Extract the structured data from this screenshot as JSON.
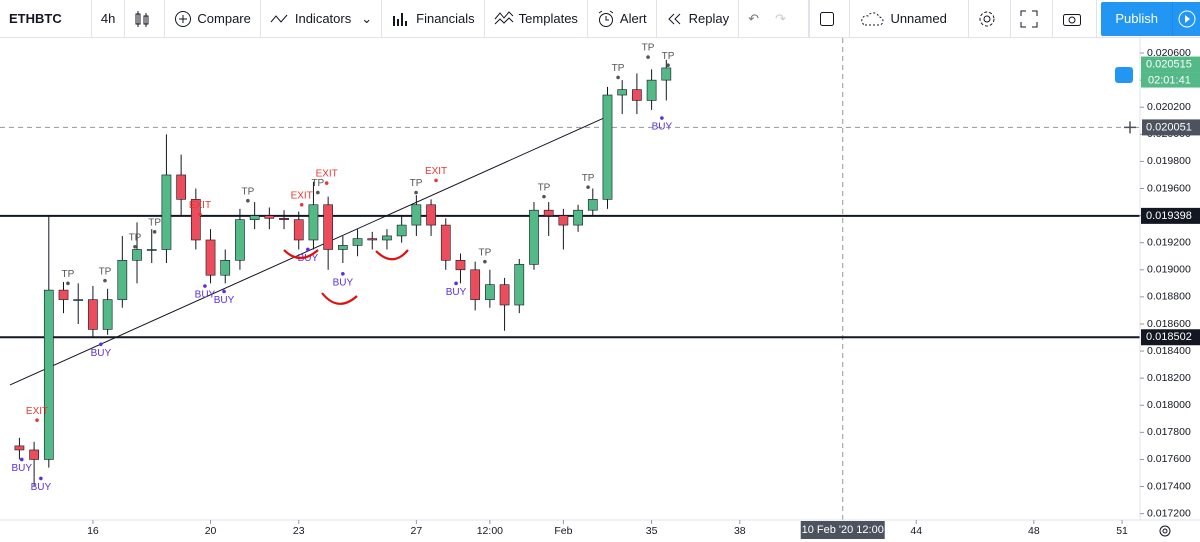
{
  "toolbar": {
    "symbol": "ETHBTC",
    "interval": "4h",
    "compare": "Compare",
    "indicators": "Indicators",
    "financials": "Financials",
    "templates": "Templates",
    "alert": "Alert",
    "replay": "Replay",
    "layout": "Unnamed",
    "publish": "Publish"
  },
  "chart_data": {
    "type": "candlestick",
    "x": [
      13.5,
      14,
      14.5,
      15,
      15.5,
      16,
      16.5,
      17,
      17.5,
      18,
      18.5,
      19,
      19.5,
      20,
      20.5,
      21,
      21.5,
      22,
      22.5,
      23,
      23.5,
      24,
      24.5,
      25,
      25.5,
      26,
      26.5,
      27,
      27.5,
      28,
      28.5,
      29,
      29.5,
      30,
      30.5,
      31,
      31.5,
      32,
      32.5,
      33,
      33.5,
      34,
      34.5,
      35,
      35.5
    ],
    "open": [
      0.0177,
      0.01767,
      0.0176,
      0.01885,
      0.01878,
      0.01878,
      0.01856,
      0.01878,
      0.01907,
      0.01915,
      0.01915,
      0.0197,
      0.01952,
      0.01922,
      0.01896,
      0.01907,
      0.01937,
      0.0194,
      0.01938,
      0.01937,
      0.01922,
      0.01948,
      0.01915,
      0.01918,
      0.01923,
      0.01922,
      0.01925,
      0.01933,
      0.01948,
      0.01933,
      0.01907,
      0.019,
      0.01878,
      0.01889,
      0.01874,
      0.01904,
      0.01944,
      0.0194,
      0.01933,
      0.01944,
      0.01952,
      0.02029,
      0.02033,
      0.02025,
      0.0204
    ],
    "high": [
      0.01776,
      0.01773,
      0.0194,
      0.01891,
      0.0189,
      0.01888,
      0.01886,
      0.01925,
      0.01935,
      0.0193,
      0.02,
      0.01985,
      0.0196,
      0.0193,
      0.01915,
      0.01945,
      0.0195,
      0.01946,
      0.01944,
      0.01943,
      0.01965,
      0.01954,
      0.01925,
      0.0193,
      0.01928,
      0.0193,
      0.0194,
      0.01955,
      0.01952,
      0.01938,
      0.01912,
      0.01906,
      0.019,
      0.01894,
      0.01908,
      0.0195,
      0.0195,
      0.01945,
      0.01948,
      0.0196,
      0.02035,
      0.0204,
      0.02045,
      0.02048,
      0.02055
    ],
    "low": [
      0.0176,
      0.0174,
      0.01754,
      0.01868,
      0.0186,
      0.0185,
      0.01852,
      0.01872,
      0.0189,
      0.01905,
      0.01905,
      0.0194,
      0.01915,
      0.0189,
      0.0189,
      0.019,
      0.0193,
      0.0193,
      0.0193,
      0.01915,
      0.01915,
      0.019,
      0.01905,
      0.0191,
      0.01915,
      0.01915,
      0.0192,
      0.01925,
      0.01925,
      0.019,
      0.0189,
      0.0187,
      0.01872,
      0.01855,
      0.01868,
      0.019,
      0.01925,
      0.01915,
      0.01928,
      0.0194,
      0.01945,
      0.02015,
      0.02015,
      0.02018,
      0.02025
    ],
    "close": [
      0.01767,
      0.0176,
      0.01885,
      0.01878,
      0.01878,
      0.01856,
      0.01878,
      0.01907,
      0.01915,
      0.01915,
      0.0197,
      0.01952,
      0.01922,
      0.01896,
      0.01907,
      0.01937,
      0.0194,
      0.01938,
      0.01937,
      0.01922,
      0.01948,
      0.01915,
      0.01918,
      0.01923,
      0.01922,
      0.01925,
      0.01933,
      0.01948,
      0.01933,
      0.01907,
      0.019,
      0.01878,
      0.01889,
      0.01874,
      0.01904,
      0.01944,
      0.0194,
      0.01933,
      0.01944,
      0.01952,
      0.02029,
      0.02033,
      0.02025,
      0.0204,
      0.02049
    ],
    "up_color": "#53b987",
    "down_color": "#eb4d5c",
    "xlim": [
      12.84,
      51.61
    ],
    "xticks": [
      16,
      20,
      23,
      27,
      {
        "value": 29.5,
        "label": "12:00"
      },
      {
        "value": 32,
        "label": "Feb"
      },
      35,
      38,
      44,
      48,
      51
    ],
    "ylim": [
      0.017153,
      0.020711
    ],
    "yticks": [
      {
        "value": 0.0172,
        "label": "0.017200"
      },
      {
        "value": 0.0174,
        "label": "0.017400"
      },
      {
        "value": 0.0176,
        "label": "0.017600"
      },
      {
        "value": 0.0178,
        "label": "0.017800"
      },
      {
        "value": 0.018,
        "label": "0.018000"
      },
      {
        "value": 0.0182,
        "label": "0.018200"
      },
      {
        "value": 0.0184,
        "label": "0.018400"
      },
      {
        "value": 0.0186,
        "label": "0.018600"
      },
      {
        "value": 0.0188,
        "label": "0.018800"
      },
      {
        "value": 0.019,
        "label": "0.019000"
      },
      {
        "value": 0.0192,
        "label": "0.019200"
      },
      {
        "value": 0.0194,
        "label": "0.019400"
      },
      {
        "value": 0.0196,
        "label": "0.019600"
      },
      {
        "value": 0.0198,
        "label": "0.019800"
      },
      {
        "value": 0.02,
        "label": "0.020000"
      },
      {
        "value": 0.0202,
        "label": "0.020200"
      },
      {
        "value": 0.0204,
        "label": "0.020400"
      },
      {
        "value": 0.0206,
        "label": "0.020600"
      }
    ],
    "levels": [
      0.019398,
      0.018502
    ],
    "last_price": 0.020515,
    "countdown": "02:01:41",
    "crosshair": {
      "x": 41.5,
      "x_label": "10 Feb '20  12:00",
      "y": 0.020051
    },
    "trend_line": {
      "x": [
        13.18,
        33.58
      ],
      "y": [
        0.01815,
        0.02014
      ]
    },
    "signals": [
      {
        "label": "BUY",
        "x": 13.58,
        "y": 0.0176
      },
      {
        "label": "BUY",
        "x": 14.23,
        "y": 0.01746
      },
      {
        "label": "EXIT",
        "x": 14.1,
        "y": 0.01789
      },
      {
        "label": "TP",
        "x": 15.15,
        "y": 0.0189
      },
      {
        "label": "BUY",
        "x": 16.27,
        "y": 0.01845
      },
      {
        "label": "TP",
        "x": 16.41,
        "y": 0.01892
      },
      {
        "label": "TP",
        "x": 17.43,
        "y": 0.01917
      },
      {
        "label": "TP",
        "x": 18.1,
        "y": 0.01928
      },
      {
        "label": "EXIT",
        "x": 19.64,
        "y": 0.01941
      },
      {
        "label": "BUY",
        "x": 19.81,
        "y": 0.01888
      },
      {
        "label": "BUY",
        "x": 20.46,
        "y": 0.01884
      },
      {
        "label": "TP",
        "x": 21.27,
        "y": 0.01951
      },
      {
        "label": "EXIT",
        "x": 23.1,
        "y": 0.01948
      },
      {
        "label": "TP",
        "x": 23.65,
        "y": 0.01957
      },
      {
        "label": "EXIT",
        "x": 23.95,
        "y": 0.01964
      },
      {
        "label": "BUY",
        "x": 23.31,
        "y": 0.01915
      },
      {
        "label": "BUY",
        "x": 24.5,
        "y": 0.01897
      },
      {
        "label": "TP",
        "x": 26.99,
        "y": 0.01957
      },
      {
        "label": "EXIT",
        "x": 27.67,
        "y": 0.01966
      },
      {
        "label": "BUY",
        "x": 28.35,
        "y": 0.0189
      },
      {
        "label": "TP",
        "x": 29.33,
        "y": 0.01906
      },
      {
        "label": "TP",
        "x": 31.34,
        "y": 0.01954
      },
      {
        "label": "TP",
        "x": 32.84,
        "y": 0.01961
      },
      {
        "label": "TP",
        "x": 33.86,
        "y": 0.02042
      },
      {
        "label": "TP",
        "x": 34.88,
        "y": 0.02057
      },
      {
        "label": "TP",
        "x": 35.56,
        "y": 0.02051
      },
      {
        "label": "BUY",
        "x": 35.35,
        "y": 0.02012
      }
    ]
  }
}
